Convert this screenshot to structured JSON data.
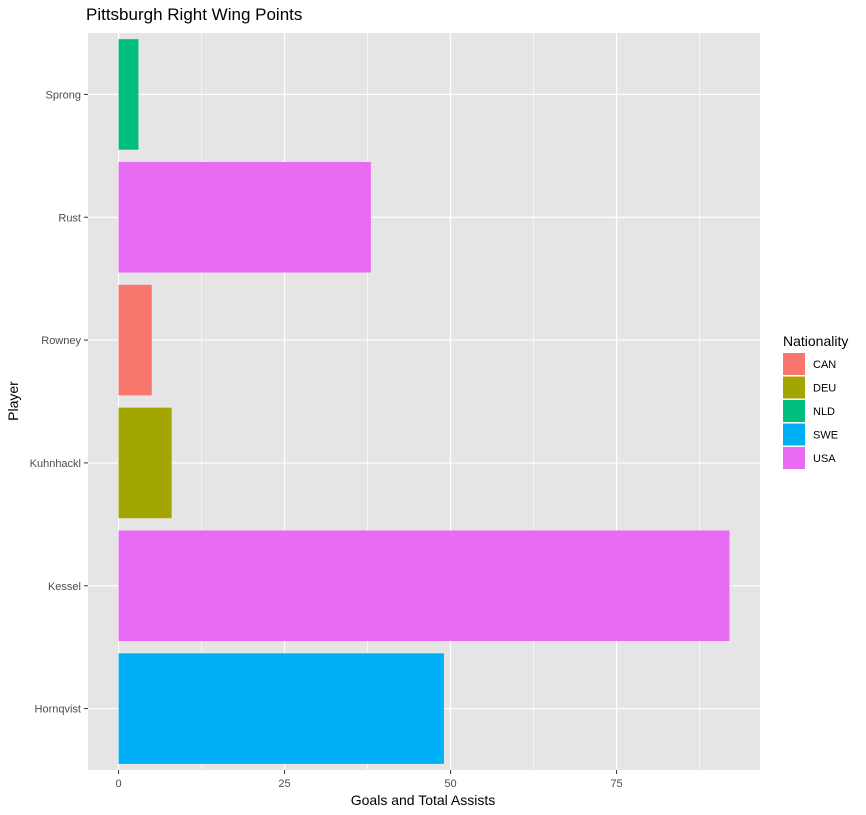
{
  "chart_data": {
    "type": "bar",
    "orientation": "horizontal",
    "title": "Pittsburgh Right Wing Points",
    "xlabel": "Goals and Total Assists",
    "ylabel": "Player",
    "categories": [
      "Hornqvist",
      "Kessel",
      "Kuhnhackl",
      "Rowney",
      "Rust",
      "Sprong"
    ],
    "values": [
      49,
      92,
      8,
      5,
      38,
      3
    ],
    "groups": [
      "SWE",
      "USA",
      "DEU",
      "CAN",
      "USA",
      "NLD"
    ],
    "xlim": [
      -4.6,
      96.6
    ],
    "xticks": [
      0,
      25,
      50,
      75
    ],
    "grid": true,
    "legend": {
      "title": "Nationality",
      "position": "right",
      "entries": [
        {
          "label": "CAN",
          "color": "#F8766D"
        },
        {
          "label": "DEU",
          "color": "#A3A500"
        },
        {
          "label": "NLD",
          "color": "#00BF7D"
        },
        {
          "label": "SWE",
          "color": "#00B0F6"
        },
        {
          "label": "USA",
          "color": "#E76BF3"
        }
      ]
    }
  },
  "colors": {
    "panel_background": "#E5E5E5",
    "grid": "#FFFFFF"
  }
}
